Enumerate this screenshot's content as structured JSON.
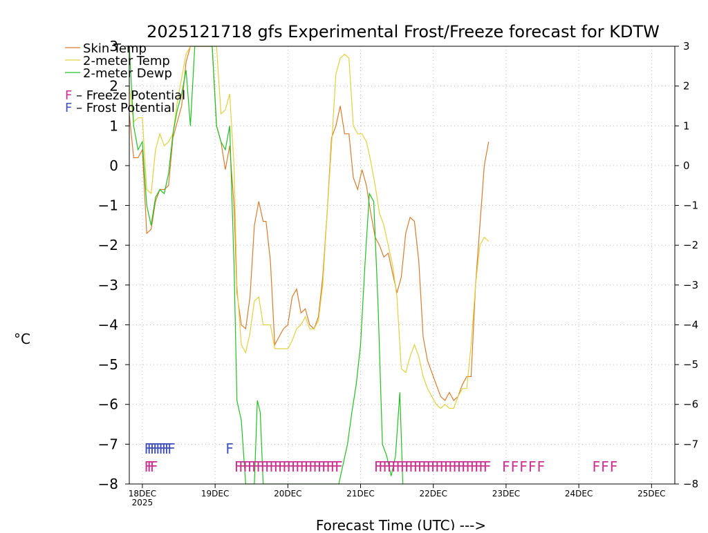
{
  "chart_data": {
    "type": "line",
    "title": "2025121718 gfs Experimental Frost/Freeze forecast for KDTW",
    "xlabel": "Forecast Time (UTC) --->",
    "ylabel": "°C",
    "ylim": [
      -8,
      3
    ],
    "xlim": [
      -0.18,
      7.32
    ],
    "x_unit": "days since 18DEC2025 00UTC",
    "x_ticks": [
      {
        "value": 0,
        "label": "18DEC",
        "sublabel": "2025"
      },
      {
        "value": 1,
        "label": "19DEC",
        "sublabel": ""
      },
      {
        "value": 2,
        "label": "20DEC",
        "sublabel": ""
      },
      {
        "value": 3,
        "label": "21DEC",
        "sublabel": ""
      },
      {
        "value": 4,
        "label": "22DEC",
        "sublabel": ""
      },
      {
        "value": 5,
        "label": "23DEC",
        "sublabel": ""
      },
      {
        "value": 6,
        "label": "24DEC",
        "sublabel": ""
      },
      {
        "value": 7,
        "label": "25DEC",
        "sublabel": ""
      }
    ],
    "y_ticks": [
      3,
      2,
      1,
      0,
      -1,
      -2,
      -3,
      -4,
      -5,
      -6,
      -7,
      -8
    ],
    "y_tick_labels": [
      "3",
      "2",
      "1",
      "0",
      "−1",
      "−2",
      "−3",
      "−4",
      "−5",
      "−6",
      "−7",
      "−8"
    ],
    "grid": true,
    "series": [
      {
        "name": "Skin Temp",
        "color": "#d97b2e",
        "x": [
          -0.18,
          -0.12,
          -0.06,
          0,
          0.06,
          0.12,
          0.18,
          0.24,
          0.3,
          0.36,
          0.42,
          0.48,
          0.54,
          0.6,
          0.66,
          0.72,
          0.78,
          0.84,
          0.9,
          0.96,
          1.02,
          1.08,
          1.14,
          1.2,
          1.26,
          1.3,
          1.36,
          1.42,
          1.48,
          1.54,
          1.6,
          1.66,
          1.7,
          1.76,
          1.82,
          1.88,
          1.94,
          2.0,
          2.06,
          2.12,
          2.18,
          2.24,
          2.3,
          2.36,
          2.42,
          2.48,
          2.54,
          2.6,
          2.66,
          2.72,
          2.78,
          2.84,
          2.9,
          2.96,
          3.02,
          3.08,
          3.14,
          3.2,
          3.26,
          3.32,
          3.38,
          3.44,
          3.5,
          3.56,
          3.62,
          3.68,
          3.74,
          3.8,
          3.86,
          3.92,
          3.98,
          4.04,
          4.1,
          4.16,
          4.22,
          4.28,
          4.34,
          4.4,
          4.46,
          4.52,
          4.58,
          4.64,
          4.7,
          4.76
        ],
        "y": [
          1.3,
          0.2,
          0.2,
          0.4,
          -1.7,
          -1.6,
          -0.9,
          -0.6,
          -0.6,
          -0.5,
          0.7,
          1.1,
          1.5,
          2.6,
          3.0,
          3.0,
          3.0,
          3.0,
          3.0,
          3.0,
          1.0,
          0.6,
          -0.1,
          0.5,
          -1.0,
          -3.2,
          -4.0,
          -4.1,
          -3.3,
          -1.5,
          -0.9,
          -1.4,
          -1.4,
          -2.4,
          -4.5,
          -4.3,
          -4.1,
          -4.0,
          -3.3,
          -3.1,
          -3.7,
          -3.6,
          -4.0,
          -4.1,
          -3.8,
          -2.8,
          -1.2,
          0.7,
          1.0,
          1.5,
          0.8,
          0.8,
          -0.3,
          -0.6,
          -0.1,
          -0.5,
          -1.2,
          -1.8,
          -2.0,
          -2.3,
          -2.2,
          -2.7,
          -3.2,
          -2.8,
          -1.7,
          -1.3,
          -1.4,
          -2.4,
          -4.3,
          -4.9,
          -5.2,
          -5.5,
          -5.8,
          -5.9,
          -5.7,
          -5.9,
          -5.8,
          -5.5,
          -5.3,
          -5.3,
          -3.0,
          -1.5,
          0.0,
          0.6
        ]
      },
      {
        "name": "2-meter Temp",
        "color": "#e0d040",
        "x": [
          -0.18,
          -0.12,
          -0.06,
          0,
          0.06,
          0.12,
          0.18,
          0.24,
          0.3,
          0.36,
          0.42,
          0.48,
          0.54,
          0.6,
          0.66,
          0.72,
          0.78,
          0.84,
          0.9,
          0.96,
          1.02,
          1.08,
          1.14,
          1.2,
          1.26,
          1.3,
          1.36,
          1.42,
          1.48,
          1.54,
          1.6,
          1.66,
          1.7,
          1.76,
          1.82,
          1.88,
          1.94,
          2.0,
          2.06,
          2.12,
          2.18,
          2.24,
          2.3,
          2.36,
          2.42,
          2.48,
          2.54,
          2.6,
          2.66,
          2.72,
          2.78,
          2.84,
          2.9,
          2.96,
          3.02,
          3.08,
          3.14,
          3.2,
          3.26,
          3.32,
          3.38,
          3.44,
          3.5,
          3.56,
          3.62,
          3.68,
          3.74,
          3.8,
          3.86,
          3.92,
          3.98,
          4.04,
          4.1,
          4.16,
          4.22,
          4.28,
          4.34,
          4.4,
          4.46,
          4.52,
          4.58,
          4.64,
          4.7,
          4.76
        ],
        "y": [
          2.0,
          1.1,
          1.2,
          1.2,
          -0.6,
          -0.7,
          0.4,
          0.8,
          0.5,
          0.6,
          0.8,
          1.6,
          2.2,
          2.8,
          3.0,
          3.0,
          3.0,
          3.0,
          3.0,
          3.0,
          3.0,
          1.3,
          1.4,
          1.8,
          0.0,
          -3.0,
          -4.5,
          -4.7,
          -4.2,
          -3.4,
          -3.3,
          -4.0,
          -4.0,
          -4.0,
          -4.6,
          -4.6,
          -4.6,
          -4.6,
          -4.4,
          -4.1,
          -4.0,
          -3.8,
          -4.1,
          -4.1,
          -3.9,
          -3.0,
          -1.2,
          0.5,
          2.3,
          2.7,
          2.8,
          2.7,
          1.0,
          0.8,
          0.8,
          0.6,
          0.1,
          -0.5,
          -1.2,
          -1.5,
          -2.0,
          -2.5,
          -3.3,
          -5.1,
          -5.2,
          -4.8,
          -4.5,
          -4.8,
          -5.3,
          -5.6,
          -5.8,
          -6.0,
          -6.1,
          -6.0,
          -6.1,
          -6.1,
          -5.8,
          -5.6,
          -5.6,
          -4.5,
          -3.0,
          -2.0,
          -1.8,
          -1.9
        ]
      },
      {
        "name": "2-meter Dewp",
        "color": "#20c020",
        "x": [
          -0.18,
          -0.12,
          -0.06,
          0,
          0.06,
          0.12,
          0.18,
          0.24,
          0.3,
          0.36,
          0.42,
          0.48,
          0.54,
          0.6,
          0.66,
          0.72,
          0.78,
          0.84,
          0.9,
          0.96,
          1.02,
          1.08,
          1.14,
          1.2,
          1.26,
          1.3,
          1.36,
          1.42,
          1.48,
          1.54,
          1.58,
          1.62,
          1.66,
          1.7,
          2.7,
          2.76,
          2.82,
          2.88,
          2.94,
          3.0,
          3.06,
          3.12,
          3.18,
          3.24,
          3.3,
          3.36,
          3.42,
          3.48,
          3.54,
          3.58
        ],
        "y": [
          3.0,
          1.0,
          0.4,
          0.6,
          -1.0,
          -1.5,
          -0.8,
          -0.6,
          -0.7,
          -0.2,
          0.8,
          1.4,
          1.8,
          2.4,
          1.0,
          3.0,
          3.0,
          3.0,
          3.0,
          3.0,
          1.0,
          0.6,
          0.4,
          1.0,
          -2.5,
          -5.9,
          -6.4,
          -8.0,
          -8.0,
          -8.0,
          -5.9,
          -6.2,
          -8.0,
          -8.0,
          -8.0,
          -7.5,
          -7.0,
          -6.2,
          -5.5,
          -4.5,
          -2.5,
          -0.7,
          -0.9,
          -3.5,
          -7.0,
          -7.3,
          -7.8,
          -7.3,
          -5.7,
          -8.0
        ]
      }
    ],
    "legend": {
      "position": "top-left",
      "entries": [
        "Skin Temp",
        "2-meter Temp",
        "2-meter Dewp"
      ],
      "notes": [
        {
          "glyph": "F",
          "text": " – Freeze Potential",
          "color": "#cc2f8f"
        },
        {
          "glyph": "F",
          "text": " – Frost Potential",
          "color": "#4050c0"
        }
      ]
    },
    "markers": [
      {
        "type": "frost",
        "label": "F",
        "color": "#4050c0",
        "row": -7.1,
        "x": [
          0.08,
          0.12,
          0.16,
          0.2,
          0.24,
          0.28,
          0.32,
          0.36,
          0.4
        ]
      },
      {
        "type": "frost",
        "label": "F",
        "color": "#4050c0",
        "row": -7.1,
        "x": [
          1.2
        ]
      },
      {
        "type": "freeze",
        "label": "F",
        "color": "#cc2f8f",
        "row": -7.55,
        "x": [
          0.08,
          0.12,
          0.16
        ]
      },
      {
        "type": "freeze",
        "label": "F",
        "color": "#cc2f8f",
        "row": -7.55,
        "x": [
          1.32,
          1.38,
          1.44,
          1.5,
          1.56,
          1.62,
          1.68,
          1.74,
          1.8,
          1.86,
          1.92,
          1.98,
          2.04,
          2.1,
          2.16,
          2.22,
          2.28,
          2.34,
          2.4,
          2.46,
          2.52,
          2.58,
          2.64,
          2.7
        ]
      },
      {
        "type": "freeze",
        "label": "F",
        "color": "#cc2f8f",
        "row": -7.55,
        "x": [
          3.24,
          3.3,
          3.36,
          3.42,
          3.48,
          3.54,
          3.6,
          3.66,
          3.72,
          3.78,
          3.84,
          3.9,
          3.96,
          4.02,
          4.08,
          4.14,
          4.2,
          4.26,
          4.32,
          4.38,
          4.44,
          4.5,
          4.56,
          4.62,
          4.68,
          4.74
        ]
      },
      {
        "type": "freeze",
        "label": "F",
        "color": "#cc2f8f",
        "row": -7.55,
        "x": [
          5.0,
          5.12,
          5.24,
          5.36,
          5.48
        ]
      },
      {
        "type": "freeze",
        "label": "F",
        "color": "#cc2f8f",
        "row": -7.55,
        "x": [
          6.24,
          6.36,
          6.48
        ]
      }
    ]
  }
}
